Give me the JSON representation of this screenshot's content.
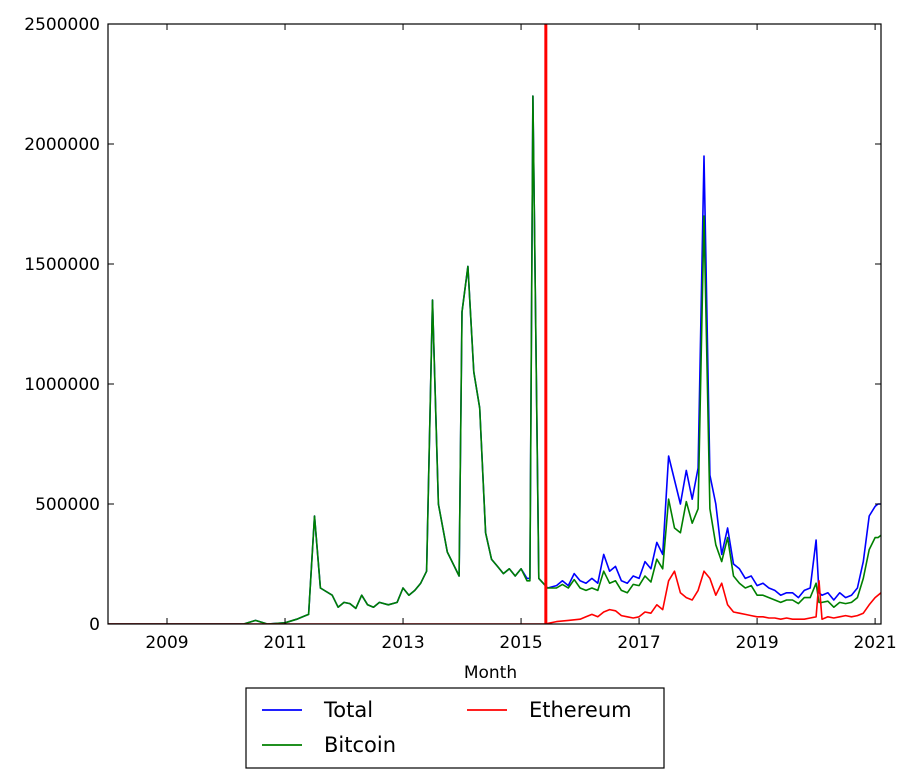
{
  "chart_data": {
    "type": "line",
    "title": "",
    "xlabel": "Month",
    "ylabel": "",
    "xlim": [
      2008.0,
      2021.1
    ],
    "ylim": [
      0,
      2500000
    ],
    "xticks": [
      2009,
      2011,
      2013,
      2015,
      2017,
      2019,
      2021
    ],
    "xtick_labels": [
      "2009",
      "2011",
      "2013",
      "2015",
      "2017",
      "2019",
      "2021"
    ],
    "yticks": [
      0,
      500000,
      1000000,
      1500000,
      2000000,
      2500000
    ],
    "ytick_labels": [
      "0",
      "500000",
      "1000000",
      "1500000",
      "2000000",
      "2500000"
    ],
    "grid": false,
    "legend_position": "below",
    "vertical_marker": {
      "x": 2015.42,
      "color": "#ff0000"
    },
    "series": [
      {
        "name": "Total",
        "color": "#0000ff",
        "x": [
          2008.0,
          2010.3,
          2010.5,
          2010.7,
          2011.0,
          2011.2,
          2011.3,
          2011.4,
          2011.5,
          2011.6,
          2011.8,
          2011.9,
          2012.0,
          2012.1,
          2012.2,
          2012.3,
          2012.4,
          2012.5,
          2012.6,
          2012.75,
          2012.9,
          2013.0,
          2013.1,
          2013.2,
          2013.3,
          2013.4,
          2013.5,
          2013.6,
          2013.75,
          2013.85,
          2013.95,
          2014.0,
          2014.1,
          2014.2,
          2014.3,
          2014.4,
          2014.5,
          2014.6,
          2014.7,
          2014.8,
          2014.9,
          2015.0,
          2015.1,
          2015.15,
          2015.2,
          2015.3,
          2015.45,
          2015.6,
          2015.7,
          2015.8,
          2015.9,
          2016.0,
          2016.1,
          2016.2,
          2016.3,
          2016.4,
          2016.5,
          2016.6,
          2016.7,
          2016.8,
          2016.9,
          2017.0,
          2017.1,
          2017.2,
          2017.3,
          2017.4,
          2017.5,
          2017.6,
          2017.7,
          2017.8,
          2017.9,
          2018.0,
          2018.1,
          2018.2,
          2018.3,
          2018.4,
          2018.5,
          2018.6,
          2018.7,
          2018.8,
          2018.9,
          2019.0,
          2019.1,
          2019.2,
          2019.3,
          2019.4,
          2019.5,
          2019.6,
          2019.7,
          2019.8,
          2019.9,
          2020.0,
          2020.05,
          2020.1,
          2020.2,
          2020.3,
          2020.4,
          2020.5,
          2020.6,
          2020.7,
          2020.8,
          2020.9,
          2021.0,
          2021.05,
          2021.1
        ],
        "y": [
          0,
          0,
          15000,
          0,
          5000,
          20000,
          30000,
          40000,
          450000,
          150000,
          120000,
          70000,
          90000,
          85000,
          65000,
          120000,
          80000,
          70000,
          90000,
          80000,
          90000,
          150000,
          120000,
          140000,
          170000,
          220000,
          1350000,
          500000,
          300000,
          250000,
          200000,
          1300000,
          1490000,
          1050000,
          900000,
          380000,
          270000,
          240000,
          210000,
          230000,
          200000,
          230000,
          190000,
          190000,
          2200000,
          190000,
          150000,
          160000,
          180000,
          160000,
          210000,
          180000,
          170000,
          190000,
          170000,
          290000,
          220000,
          240000,
          180000,
          170000,
          200000,
          190000,
          260000,
          230000,
          340000,
          290000,
          700000,
          600000,
          500000,
          640000,
          520000,
          650000,
          1950000,
          620000,
          500000,
          290000,
          400000,
          250000,
          230000,
          190000,
          200000,
          160000,
          170000,
          150000,
          140000,
          120000,
          130000,
          130000,
          110000,
          140000,
          150000,
          350000,
          130000,
          120000,
          130000,
          100000,
          130000,
          110000,
          120000,
          150000,
          260000,
          450000,
          490000,
          500000,
          500000
        ]
      },
      {
        "name": "Bitcoin",
        "color": "#008000",
        "x": [
          2008.0,
          2010.3,
          2010.5,
          2010.7,
          2011.0,
          2011.2,
          2011.3,
          2011.4,
          2011.5,
          2011.6,
          2011.8,
          2011.9,
          2012.0,
          2012.1,
          2012.2,
          2012.3,
          2012.4,
          2012.5,
          2012.6,
          2012.75,
          2012.9,
          2013.0,
          2013.1,
          2013.2,
          2013.3,
          2013.4,
          2013.5,
          2013.6,
          2013.75,
          2013.85,
          2013.95,
          2014.0,
          2014.1,
          2014.2,
          2014.3,
          2014.4,
          2014.5,
          2014.6,
          2014.7,
          2014.8,
          2014.9,
          2015.0,
          2015.1,
          2015.15,
          2015.2,
          2015.3,
          2015.45,
          2015.6,
          2015.7,
          2015.8,
          2015.9,
          2016.0,
          2016.1,
          2016.2,
          2016.3,
          2016.4,
          2016.5,
          2016.6,
          2016.7,
          2016.8,
          2016.9,
          2017.0,
          2017.1,
          2017.2,
          2017.3,
          2017.4,
          2017.5,
          2017.6,
          2017.7,
          2017.8,
          2017.9,
          2018.0,
          2018.1,
          2018.2,
          2018.3,
          2018.4,
          2018.5,
          2018.6,
          2018.7,
          2018.8,
          2018.9,
          2019.0,
          2019.1,
          2019.2,
          2019.3,
          2019.4,
          2019.5,
          2019.6,
          2019.7,
          2019.8,
          2019.9,
          2020.0,
          2020.05,
          2020.1,
          2020.2,
          2020.3,
          2020.4,
          2020.5,
          2020.6,
          2020.7,
          2020.8,
          2020.9,
          2021.0,
          2021.05,
          2021.1
        ],
        "y": [
          0,
          0,
          15000,
          0,
          5000,
          20000,
          30000,
          40000,
          450000,
          150000,
          120000,
          70000,
          90000,
          85000,
          65000,
          120000,
          80000,
          70000,
          90000,
          80000,
          90000,
          150000,
          120000,
          140000,
          170000,
          220000,
          1350000,
          500000,
          300000,
          250000,
          200000,
          1300000,
          1490000,
          1050000,
          900000,
          380000,
          270000,
          240000,
          210000,
          230000,
          200000,
          230000,
          180000,
          180000,
          2200000,
          190000,
          150000,
          150000,
          165000,
          150000,
          185000,
          150000,
          140000,
          150000,
          140000,
          220000,
          170000,
          180000,
          140000,
          130000,
          165000,
          160000,
          200000,
          175000,
          270000,
          230000,
          520000,
          400000,
          380000,
          510000,
          420000,
          480000,
          1700000,
          480000,
          330000,
          260000,
          360000,
          200000,
          170000,
          150000,
          160000,
          120000,
          120000,
          110000,
          100000,
          90000,
          100000,
          100000,
          85000,
          110000,
          110000,
          170000,
          90000,
          90000,
          95000,
          70000,
          90000,
          85000,
          90000,
          110000,
          190000,
          310000,
          360000,
          360000,
          370000
        ]
      },
      {
        "name": "Ethereum",
        "color": "#ff0000",
        "x": [
          2008.0,
          2015.4,
          2015.6,
          2015.8,
          2016.0,
          2016.1,
          2016.2,
          2016.3,
          2016.4,
          2016.5,
          2016.6,
          2016.7,
          2016.8,
          2016.9,
          2017.0,
          2017.1,
          2017.2,
          2017.3,
          2017.4,
          2017.5,
          2017.6,
          2017.7,
          2017.8,
          2017.9,
          2018.0,
          2018.1,
          2018.2,
          2018.3,
          2018.4,
          2018.5,
          2018.6,
          2018.7,
          2018.8,
          2018.9,
          2019.0,
          2019.1,
          2019.2,
          2019.3,
          2019.4,
          2019.5,
          2019.6,
          2019.7,
          2019.8,
          2019.9,
          2020.0,
          2020.05,
          2020.1,
          2020.2,
          2020.3,
          2020.4,
          2020.5,
          2020.6,
          2020.7,
          2020.8,
          2020.9,
          2021.0,
          2021.1
        ],
        "y": [
          0,
          0,
          10000,
          15000,
          20000,
          30000,
          40000,
          30000,
          50000,
          60000,
          55000,
          35000,
          30000,
          25000,
          30000,
          50000,
          45000,
          80000,
          60000,
          180000,
          220000,
          130000,
          110000,
          100000,
          140000,
          220000,
          190000,
          120000,
          170000,
          80000,
          50000,
          45000,
          40000,
          35000,
          30000,
          30000,
          25000,
          25000,
          20000,
          25000,
          20000,
          20000,
          20000,
          25000,
          30000,
          180000,
          20000,
          30000,
          25000,
          30000,
          35000,
          30000,
          35000,
          45000,
          80000,
          110000,
          130000
        ]
      }
    ]
  }
}
